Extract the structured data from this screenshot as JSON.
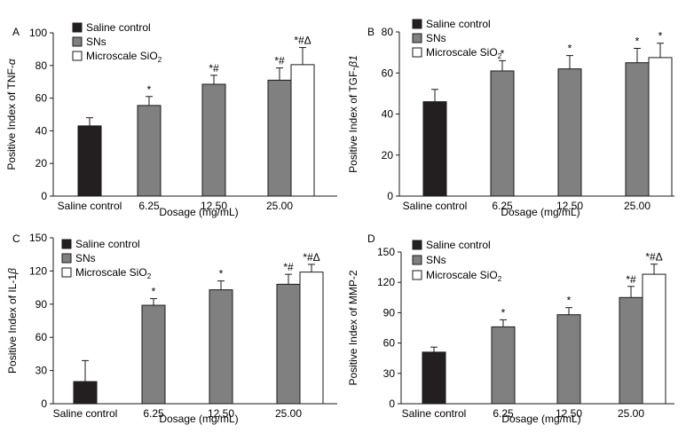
{
  "colors": {
    "saline": "#231f20",
    "sns": "#808080",
    "micro": "#ffffff",
    "axis": "#1a1a1a"
  },
  "chart_data": [
    {
      "panel_label": "A",
      "type": "bar",
      "ylabel_parts": [
        "Positive Index of TNF-",
        "α"
      ],
      "xlabel": "Dosage (mg/mL)",
      "ylim": [
        0,
        100
      ],
      "yticks": [
        0,
        20,
        40,
        60,
        80,
        100
      ],
      "categories": [
        "Saline control",
        "6.25",
        "12.50",
        "25.00"
      ],
      "legend": [
        "Saline control",
        "SNs",
        "Microscale SiO2"
      ],
      "legend_sub": "2",
      "series": [
        {
          "name": "Saline control",
          "color_key": "saline",
          "points": [
            {
              "category": 0,
              "value": 43,
              "error": 5,
              "annotation": ""
            }
          ]
        },
        {
          "name": "SNs",
          "color_key": "sns",
          "points": [
            {
              "category": 1,
              "value": 55.5,
              "error": 5.5,
              "annotation": "*"
            },
            {
              "category": 2,
              "value": 68.5,
              "error": 5.5,
              "annotation": "*#"
            },
            {
              "category": 3,
              "value": 71,
              "error": 7.5,
              "annotation": "*#"
            }
          ]
        },
        {
          "name": "Microscale SiO2",
          "color_key": "micro",
          "points": [
            {
              "category": 3,
              "value": 80.5,
              "error": 10.5,
              "annotation": "*#Δ"
            }
          ]
        }
      ]
    },
    {
      "panel_label": "B",
      "type": "bar",
      "ylabel_parts": [
        "Positive Index of TGF-",
        "β1"
      ],
      "xlabel": "Dosage (mg/mL)",
      "ylim": [
        0,
        80
      ],
      "yticks": [
        0,
        20,
        40,
        60,
        80
      ],
      "categories": [
        "Saline control",
        "6.25",
        "12.50",
        "25.00"
      ],
      "legend": [
        "Saline control",
        "SNs",
        "Microscale SiO2"
      ],
      "legend_sub": "2",
      "series": [
        {
          "name": "Saline control",
          "color_key": "saline",
          "points": [
            {
              "category": 0,
              "value": 46,
              "error": 6,
              "annotation": ""
            }
          ]
        },
        {
          "name": "SNs",
          "color_key": "sns",
          "points": [
            {
              "category": 1,
              "value": 61,
              "error": 5,
              "annotation": "*"
            },
            {
              "category": 2,
              "value": 62,
              "error": 6.5,
              "annotation": "*"
            },
            {
              "category": 3,
              "value": 65,
              "error": 7,
              "annotation": "*"
            }
          ]
        },
        {
          "name": "Microscale SiO2",
          "color_key": "micro",
          "points": [
            {
              "category": 3,
              "value": 67.5,
              "error": 7,
              "annotation": "*"
            }
          ]
        }
      ]
    },
    {
      "panel_label": "C",
      "type": "bar",
      "ylabel_parts": [
        "Positive Index of IL-1",
        "β"
      ],
      "xlabel": "Dosage (mg/mL)",
      "ylim": [
        0,
        150
      ],
      "yticks": [
        0,
        30,
        60,
        90,
        120,
        150
      ],
      "categories": [
        "Saline control",
        "6.25",
        "12.50",
        "25.00"
      ],
      "legend": [
        "Saline control",
        "SNs",
        "Microscale SiO2"
      ],
      "legend_sub": "2",
      "series": [
        {
          "name": "Saline control",
          "color_key": "saline",
          "points": [
            {
              "category": 0,
              "value": 20,
              "error": 19,
              "annotation": ""
            }
          ]
        },
        {
          "name": "SNs",
          "color_key": "sns",
          "points": [
            {
              "category": 1,
              "value": 89,
              "error": 6,
              "annotation": "*"
            },
            {
              "category": 2,
              "value": 103,
              "error": 8,
              "annotation": "*"
            },
            {
              "category": 3,
              "value": 108,
              "error": 9,
              "annotation": "*#"
            }
          ]
        },
        {
          "name": "Microscale SiO2",
          "color_key": "micro",
          "points": [
            {
              "category": 3,
              "value": 119,
              "error": 7,
              "annotation": "*#Δ"
            }
          ]
        }
      ]
    },
    {
      "panel_label": "D",
      "type": "bar",
      "ylabel_parts": [
        "Positive Index of MMP-2",
        ""
      ],
      "xlabel": "Dosage (mg/mL)",
      "ylim": [
        0,
        150
      ],
      "yticks": [
        0,
        30,
        60,
        90,
        120,
        150
      ],
      "categories": [
        "Saline control",
        "6.25",
        "12.50",
        "25.00"
      ],
      "legend": [
        "Saline control",
        "SNs",
        "Microscale SiO2"
      ],
      "legend_sub": "2",
      "series": [
        {
          "name": "Saline control",
          "color_key": "saline",
          "points": [
            {
              "category": 0,
              "value": 51,
              "error": 5,
              "annotation": ""
            }
          ]
        },
        {
          "name": "SNs",
          "color_key": "sns",
          "points": [
            {
              "category": 1,
              "value": 76,
              "error": 7,
              "annotation": "*"
            },
            {
              "category": 2,
              "value": 88,
              "error": 7,
              "annotation": "*"
            },
            {
              "category": 3,
              "value": 105,
              "error": 11,
              "annotation": "*#"
            }
          ]
        },
        {
          "name": "Microscale SiO2",
          "color_key": "micro",
          "points": [
            {
              "category": 3,
              "value": 128,
              "error": 10,
              "annotation": "*#Δ"
            }
          ]
        }
      ]
    }
  ]
}
